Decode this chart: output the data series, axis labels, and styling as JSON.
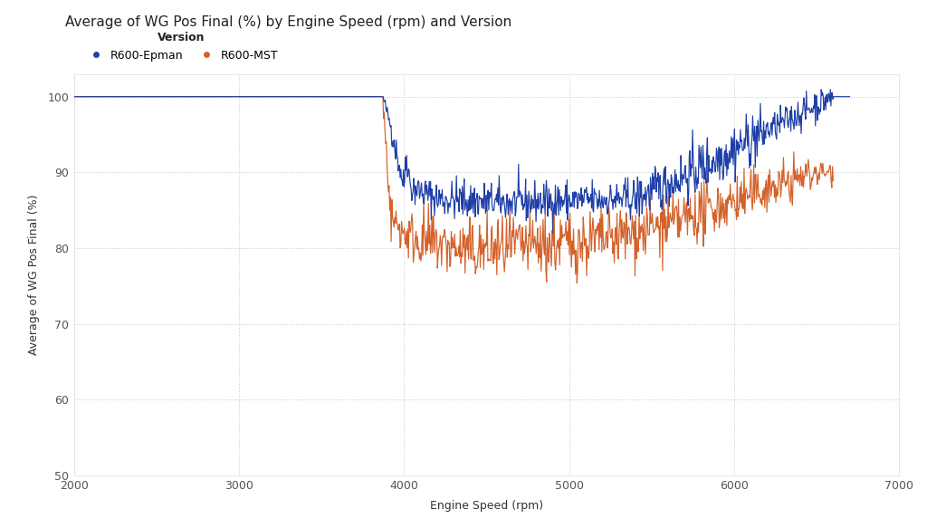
{
  "title": "Average of WG Pos Final (%) by Engine Speed (rpm) and Version",
  "xlabel": "Engine Speed (rpm)",
  "ylabel": "Average of WG Pos Final (%)",
  "legend_title": "Version",
  "legend_entries": [
    "R600-Epman",
    "R600-MST"
  ],
  "epman_color": "#1f3fa8",
  "mst_color": "#d4622a",
  "bg_color": "#ffffff",
  "grid_color": "#c8c8c8",
  "xlim": [
    2000,
    7000
  ],
  "ylim": [
    50,
    103
  ],
  "yticks": [
    50,
    60,
    70,
    80,
    90,
    100
  ],
  "xticks": [
    2000,
    3000,
    4000,
    5000,
    6000,
    7000
  ],
  "title_fontsize": 11,
  "label_fontsize": 9,
  "tick_fontsize": 9
}
